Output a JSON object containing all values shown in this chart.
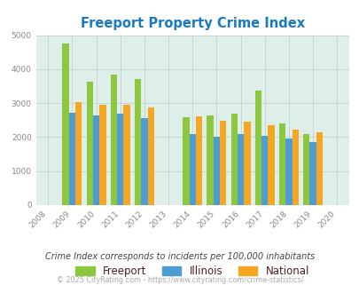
{
  "title": "Freeport Property Crime Index",
  "title_color": "#1a7abf",
  "years": [
    2009,
    2010,
    2011,
    2012,
    2014,
    2015,
    2016,
    2017,
    2018,
    2019
  ],
  "freeport": [
    4750,
    3630,
    3830,
    3700,
    2590,
    2640,
    2700,
    3360,
    2400,
    2100
  ],
  "illinois": [
    2720,
    2650,
    2690,
    2570,
    2090,
    2010,
    2080,
    2040,
    1960,
    1850
  ],
  "national": [
    3040,
    2960,
    2940,
    2880,
    2610,
    2490,
    2460,
    2360,
    2210,
    2130
  ],
  "freeport_color": "#8dc63f",
  "illinois_color": "#4d9cd4",
  "national_color": "#f5a623",
  "bg_color": "#deeee8",
  "ylim": [
    0,
    5000
  ],
  "yticks": [
    0,
    1000,
    2000,
    3000,
    4000,
    5000
  ],
  "xlim": [
    2007.5,
    2020.5
  ],
  "xticks": [
    2008,
    2009,
    2010,
    2011,
    2012,
    2013,
    2014,
    2015,
    2016,
    2017,
    2018,
    2019,
    2020
  ],
  "bar_width": 0.27,
  "subtitle": "Crime Index corresponds to incidents per 100,000 inhabitants",
  "subtitle_color": "#444444",
  "footer": "© 2025 CityRating.com - https://www.cityrating.com/crime-statistics/",
  "footer_color": "#aaaaaa",
  "grid_color": "#bbcccc",
  "legend_text_color": "#4a2020",
  "tick_color": "#888888"
}
